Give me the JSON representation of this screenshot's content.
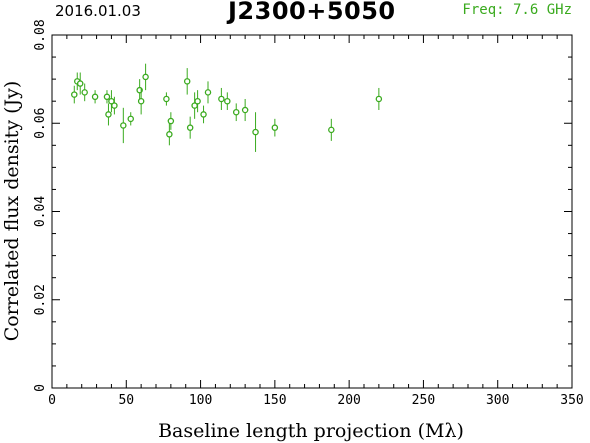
{
  "header": {
    "date": "2016.01.03",
    "source": "J2300+5050",
    "frequency": "Freq: 7.6 GHz"
  },
  "colors": {
    "points": "#3aaa1e",
    "axes": "#000000",
    "freq_text": "#3aaa1e"
  },
  "chart_data": {
    "type": "scatter",
    "title": "J2300+5050",
    "xlabel": "Baseline length projection (Mλ)",
    "ylabel": "Correlated flux density (Jy)",
    "xlim": [
      0,
      350
    ],
    "ylim": [
      0,
      0.08
    ],
    "xticks": [
      0,
      50,
      100,
      150,
      200,
      250,
      300,
      350
    ],
    "yticks": [
      0,
      0.02,
      0.04,
      0.06,
      0.08
    ],
    "xtick_labels": [
      "0",
      "50",
      "100",
      "150",
      "200",
      "250",
      "300",
      "350"
    ],
    "ytick_labels": [
      "0",
      "0.02",
      "0.04",
      "0.06",
      "0.08"
    ],
    "grid": false,
    "points": [
      {
        "x": 15,
        "y": 0.0665,
        "err": 0.002
      },
      {
        "x": 17,
        "y": 0.0695,
        "err": 0.002
      },
      {
        "x": 19,
        "y": 0.069,
        "err": 0.0025
      },
      {
        "x": 22,
        "y": 0.067,
        "err": 0.002
      },
      {
        "x": 29,
        "y": 0.066,
        "err": 0.0015
      },
      {
        "x": 37,
        "y": 0.066,
        "err": 0.0015
      },
      {
        "x": 38,
        "y": 0.062,
        "err": 0.0025
      },
      {
        "x": 40,
        "y": 0.065,
        "err": 0.0025
      },
      {
        "x": 42,
        "y": 0.064,
        "err": 0.002
      },
      {
        "x": 48,
        "y": 0.0595,
        "err": 0.004
      },
      {
        "x": 53,
        "y": 0.061,
        "err": 0.0015
      },
      {
        "x": 59,
        "y": 0.0675,
        "err": 0.0025
      },
      {
        "x": 60,
        "y": 0.065,
        "err": 0.003
      },
      {
        "x": 63,
        "y": 0.0705,
        "err": 0.003
      },
      {
        "x": 77,
        "y": 0.0655,
        "err": 0.0015
      },
      {
        "x": 79,
        "y": 0.0575,
        "err": 0.0025
      },
      {
        "x": 80,
        "y": 0.0605,
        "err": 0.002
      },
      {
        "x": 91,
        "y": 0.0695,
        "err": 0.003
      },
      {
        "x": 93,
        "y": 0.059,
        "err": 0.0025
      },
      {
        "x": 96,
        "y": 0.064,
        "err": 0.003
      },
      {
        "x": 98,
        "y": 0.065,
        "err": 0.0025
      },
      {
        "x": 102,
        "y": 0.062,
        "err": 0.002
      },
      {
        "x": 105,
        "y": 0.067,
        "err": 0.0025
      },
      {
        "x": 114,
        "y": 0.0655,
        "err": 0.0025
      },
      {
        "x": 118,
        "y": 0.065,
        "err": 0.002
      },
      {
        "x": 124,
        "y": 0.0625,
        "err": 0.002
      },
      {
        "x": 130,
        "y": 0.063,
        "err": 0.0025
      },
      {
        "x": 137,
        "y": 0.058,
        "err": 0.0045
      },
      {
        "x": 150,
        "y": 0.059,
        "err": 0.002
      },
      {
        "x": 188,
        "y": 0.0585,
        "err": 0.0025
      },
      {
        "x": 220,
        "y": 0.0655,
        "err": 0.0025
      }
    ]
  }
}
